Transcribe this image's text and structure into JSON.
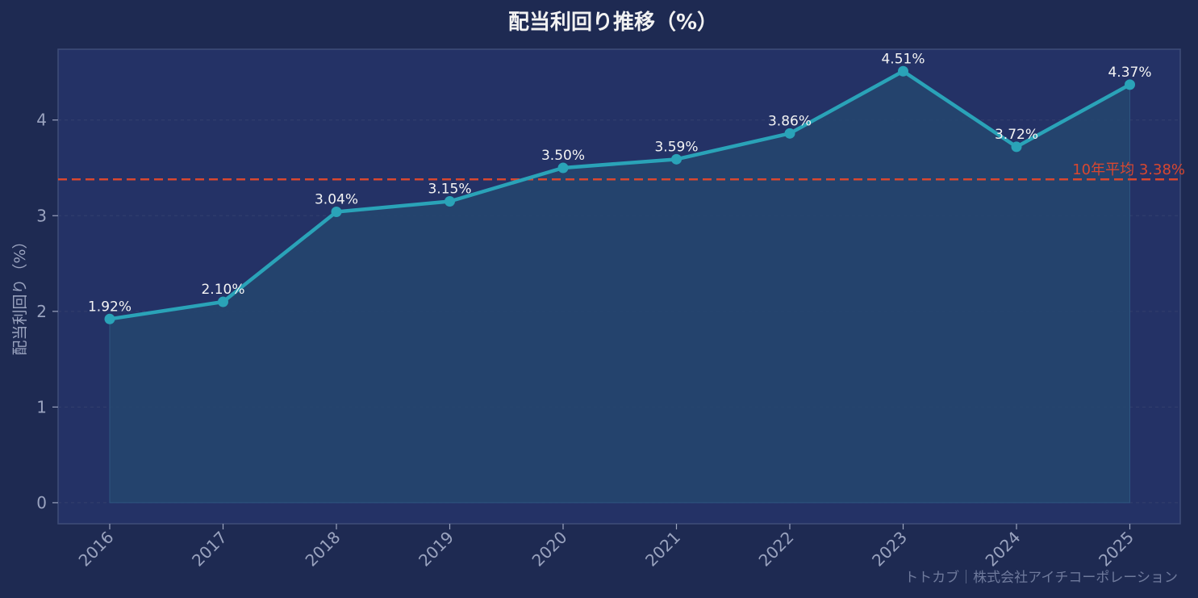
{
  "chart_data": {
    "type": "line",
    "title": "配当利回り推移（%）",
    "ylabel": "配当利回り（%）",
    "xlabel": "",
    "categories": [
      "2016",
      "2017",
      "2018",
      "2019",
      "2020",
      "2021",
      "2022",
      "2023",
      "2024",
      "2025"
    ],
    "series": [
      {
        "values": [
          1.92,
          2.1,
          3.04,
          3.15,
          3.5,
          3.59,
          3.86,
          4.51,
          3.72,
          4.37
        ],
        "data_labels": [
          "1.92%",
          "2.10%",
          "3.04%",
          "3.15%",
          "3.50%",
          "3.59%",
          "3.86%",
          "4.51%",
          "3.72%",
          "4.37%"
        ]
      }
    ],
    "ylim": [
      -0.22,
      4.74
    ],
    "yticks": [
      0,
      1,
      2,
      3,
      4
    ],
    "ytick_labels": [
      "0",
      "1",
      "2",
      "3",
      "4"
    ],
    "reference_line": {
      "value": 3.38,
      "label": "10年平均 3.38%",
      "style": "dashed"
    },
    "grid": true,
    "area_fill": true
  },
  "credit": "トトカブ｜株式会社アイチコーポレーション",
  "colors": {
    "background": "#1e2a52",
    "plot_background": "#243266",
    "line": "#2aa3b8",
    "area": "#25476f",
    "reference": "#d9472f",
    "grid": "#33406e",
    "spine": "#3e4c78"
  }
}
